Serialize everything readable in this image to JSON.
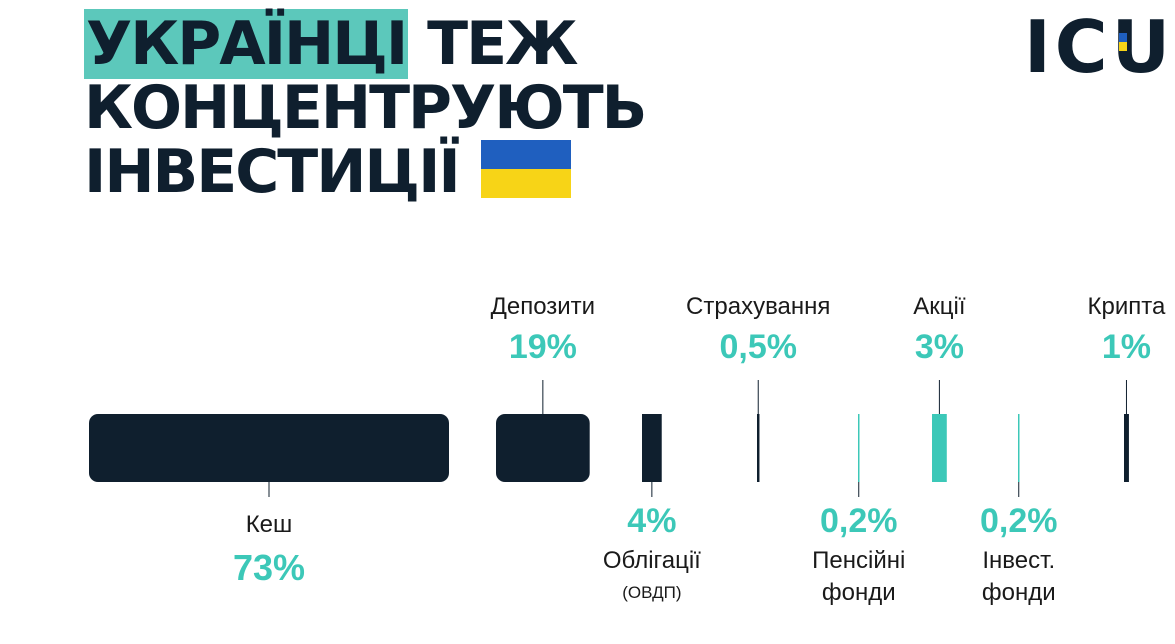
{
  "title": {
    "highlight": "УКРАЇНЦІ",
    "rest1": "ТЕЖ",
    "line2": "КОНЦЕНТРУЮТЬ",
    "line3": "ІНВЕСТИЦІЇ"
  },
  "logo": {
    "text": "ICU"
  },
  "colors": {
    "dark": "#0f1f2e",
    "accent": "#3cc8b8",
    "highlight": "#5cc8bb",
    "flag_blue": "#1f5fbf",
    "flag_yellow": "#f7d417"
  },
  "chart_data": {
    "type": "bar",
    "categories": [
      {
        "name": "Кеш",
        "sub": "",
        "value_label": "73%",
        "value": 73,
        "color": "dark",
        "label_pos": "below"
      },
      {
        "name": "Депозити",
        "sub": "",
        "value_label": "19%",
        "value": 19,
        "color": "dark",
        "label_pos": "above"
      },
      {
        "name": "Облігації",
        "sub": "(ОВДП)",
        "value_label": "4%",
        "value": 4,
        "color": "dark",
        "label_pos": "below"
      },
      {
        "name": "Страхування",
        "sub": "",
        "value_label": "0,5%",
        "value": 0.5,
        "color": "dark",
        "label_pos": "above"
      },
      {
        "name": "Пенсійні",
        "sub": "фонди",
        "value_label": "0,2%",
        "value": 0.2,
        "color": "accent",
        "label_pos": "below"
      },
      {
        "name": "Акції",
        "sub": "",
        "value_label": "3%",
        "value": 3,
        "color": "accent",
        "label_pos": "above"
      },
      {
        "name": "Інвест.",
        "sub": "фонди",
        "value_label": "0,2%",
        "value": 0.2,
        "color": "accent",
        "label_pos": "below"
      },
      {
        "name": "Крипта",
        "sub": "",
        "value_label": "1%",
        "value": 1,
        "color": "dark",
        "label_pos": "above"
      }
    ]
  }
}
